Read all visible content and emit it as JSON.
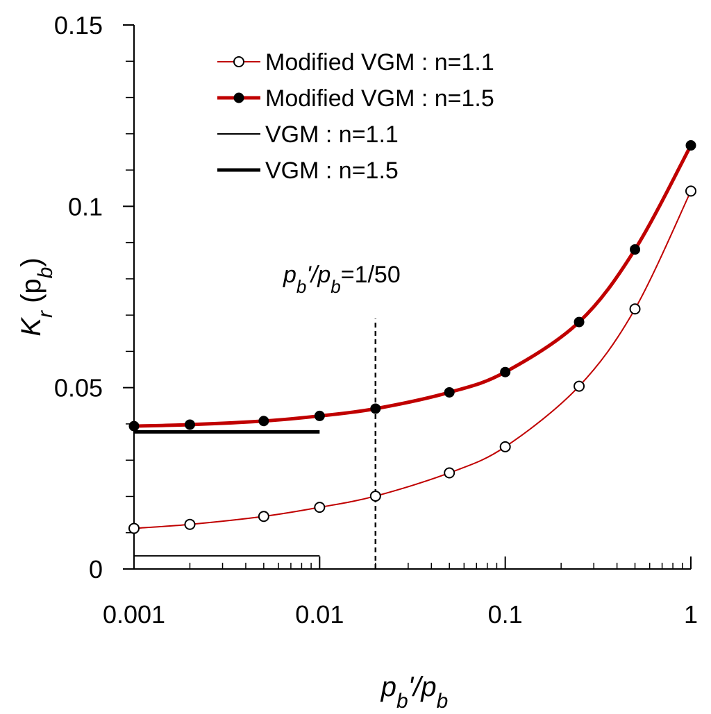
{
  "chart_data": {
    "type": "line",
    "title": "",
    "xlabel": {
      "main": "p",
      "sub": "b",
      "mid": "'/p",
      "sub2": "b"
    },
    "ylabel": {
      "main": "K",
      "sub": "r",
      "mid": " (p",
      "sub2": "b",
      "end": ")"
    },
    "x_scale": "log",
    "xlim": [
      0.001,
      1
    ],
    "ylim": [
      0,
      0.15
    ],
    "x_ticks": [
      {
        "value": 0.001,
        "label": "0.001"
      },
      {
        "value": 0.01,
        "label": "0.01"
      },
      {
        "value": 0.1,
        "label": "0.1"
      },
      {
        "value": 1,
        "label": "1"
      }
    ],
    "y_ticks": [
      {
        "value": 0,
        "label": "0"
      },
      {
        "value": 0.05,
        "label": "0.05"
      },
      {
        "value": 0.1,
        "label": "0.1"
      },
      {
        "value": 0.15,
        "label": "0.15"
      }
    ],
    "y_minor_step": 0.01,
    "grid": false,
    "legend_position": "top",
    "series": [
      {
        "name": "Modified VGM : n=1.1",
        "color": "#c00000",
        "marker": "open-circle",
        "line": "thin",
        "x": [
          0.001,
          0.002,
          0.005,
          0.01,
          0.02,
          0.05,
          0.1,
          0.25,
          0.5,
          1
        ],
        "y": [
          0.0112,
          0.0123,
          0.0145,
          0.017,
          0.0201,
          0.0265,
          0.0337,
          0.0504,
          0.0717,
          0.1042
        ]
      },
      {
        "name": "Modified VGM : n=1.5",
        "color": "#c00000",
        "marker": "filled-circle",
        "line": "thick",
        "x": [
          0.001,
          0.002,
          0.005,
          0.01,
          0.02,
          0.05,
          0.1,
          0.25,
          0.5,
          1
        ],
        "y": [
          0.0394,
          0.0398,
          0.0408,
          0.0422,
          0.0442,
          0.0487,
          0.0543,
          0.0681,
          0.0881,
          0.1168
        ]
      },
      {
        "name": "VGM : n=1.1",
        "color": "#000000",
        "marker": "none",
        "line": "thin",
        "x": [
          0.001,
          0.01
        ],
        "y": [
          0.0036,
          0.0036
        ]
      },
      {
        "name": "VGM : n=1.5",
        "color": "#000000",
        "marker": "none",
        "line": "thick",
        "x": [
          0.001,
          0.01
        ],
        "y": [
          0.0378,
          0.0378
        ]
      }
    ],
    "annotation": {
      "label": {
        "main": "p",
        "sub": "b",
        "mid": "'/p",
        "sub2": "b",
        "end": "=1/50"
      },
      "x": 0.02,
      "y_range": [
        0,
        0.069
      ]
    }
  }
}
